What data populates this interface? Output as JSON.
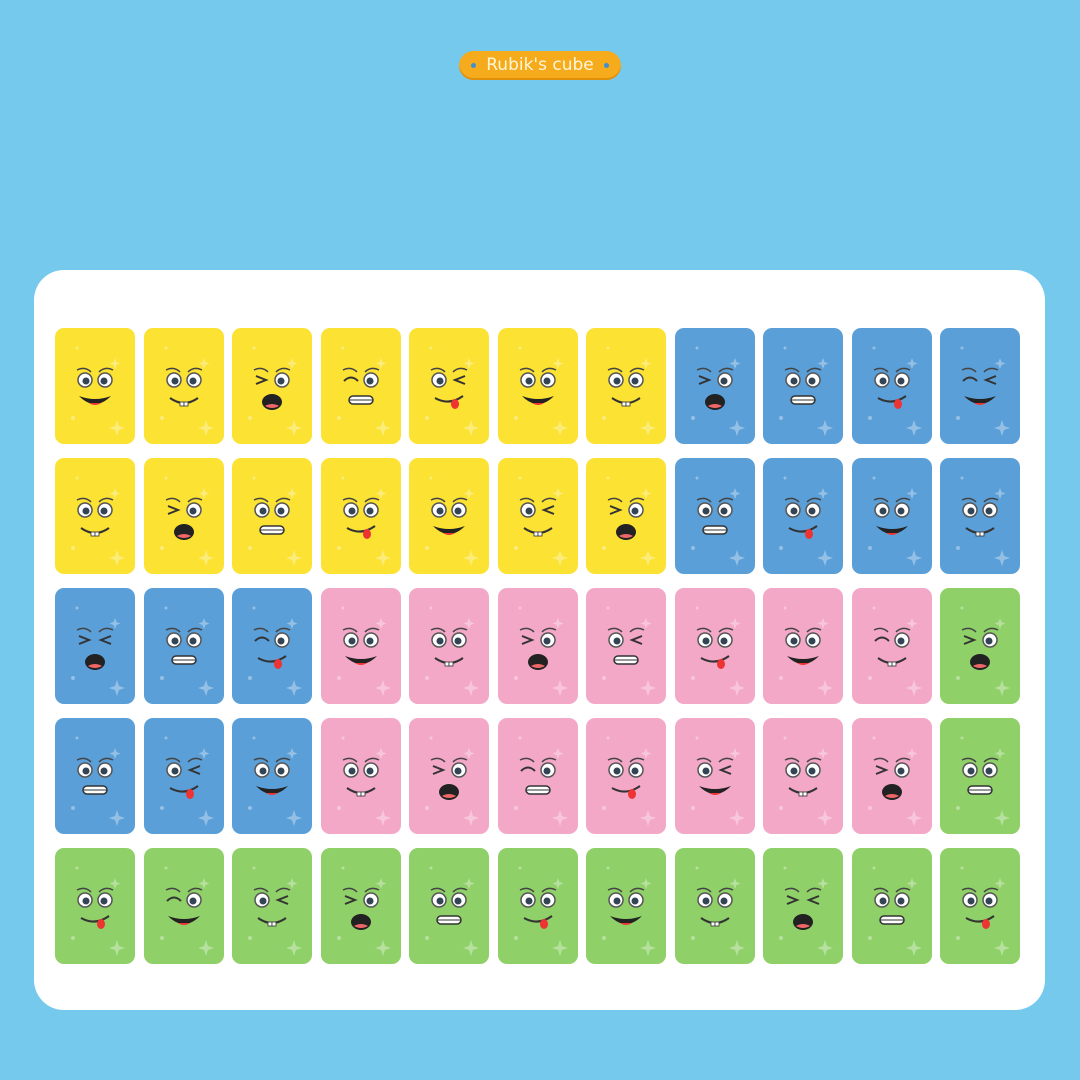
{
  "header": {
    "badge_label": "Rubik's cube"
  },
  "colors": {
    "background": "#74c9ec",
    "badge": "#f6ab1c",
    "yellow": "#fbe233",
    "blue": "#5b9fd8",
    "pink": "#f4a8c8",
    "green": "#8fd068"
  },
  "rows": [
    [
      "yellow",
      "yellow",
      "yellow",
      "yellow",
      "yellow",
      "yellow",
      "yellow",
      "blue",
      "blue",
      "blue",
      "blue"
    ],
    [
      "yellow",
      "yellow",
      "yellow",
      "yellow",
      "yellow",
      "yellow",
      "yellow",
      "blue",
      "blue",
      "blue",
      "blue"
    ],
    [
      "blue",
      "blue",
      "blue",
      "pink",
      "pink",
      "pink",
      "pink",
      "pink",
      "pink",
      "pink",
      "green"
    ],
    [
      "blue",
      "blue",
      "blue",
      "pink",
      "pink",
      "pink",
      "pink",
      "pink",
      "pink",
      "pink",
      "green"
    ],
    [
      "green",
      "green",
      "green",
      "green",
      "green",
      "green",
      "green",
      "green",
      "green",
      "green",
      "green"
    ]
  ]
}
